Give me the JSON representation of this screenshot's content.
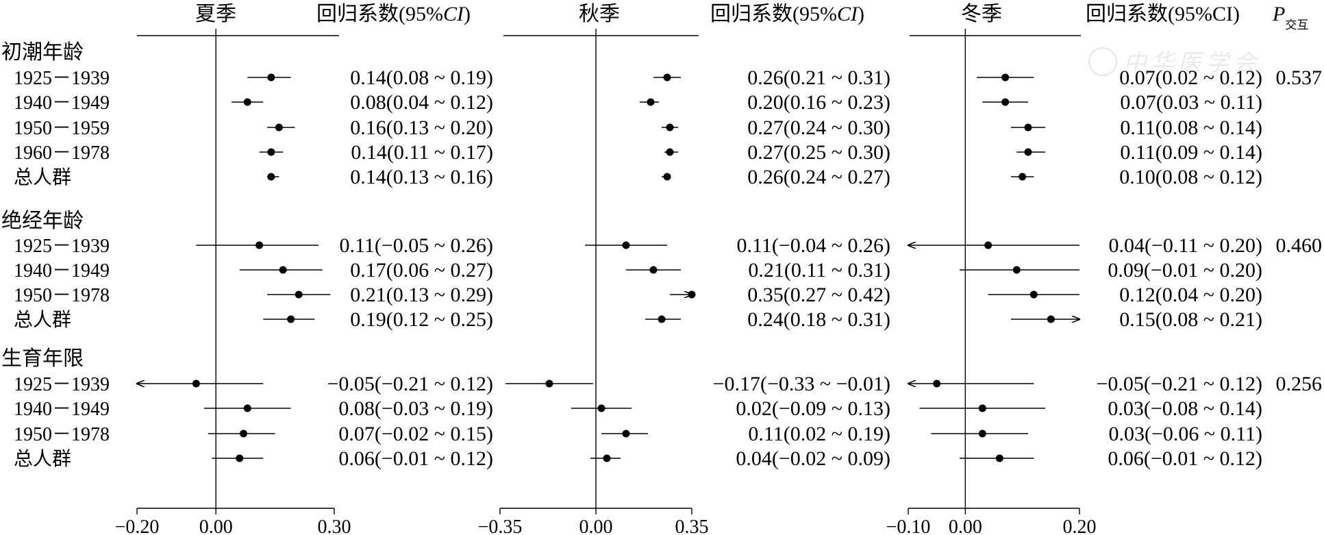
{
  "chart_data": {
    "type": "forest",
    "coef_header": "回归系数(95%CI)",
    "p_header": "P",
    "p_header_sub": "交互",
    "watermark": "中华医学会",
    "panels": [
      {
        "title": "夏季",
        "xlim": [
          -0.2,
          0.3
        ],
        "ticks": [
          "−0.20",
          "0.00",
          "0.30"
        ],
        "tick_values": [
          -0.2,
          0.0,
          0.3
        ]
      },
      {
        "title": "秋季",
        "xlim": [
          -0.35,
          0.35
        ],
        "ticks": [
          "−0.35",
          "0.00",
          "0.35"
        ],
        "tick_values": [
          -0.35,
          0.0,
          0.35
        ]
      },
      {
        "title": "冬季",
        "xlim": [
          -0.1,
          0.2
        ],
        "ticks": [
          "−0.10",
          "0.00",
          "0.20"
        ],
        "tick_values": [
          -0.1,
          0.0,
          0.2
        ]
      }
    ],
    "groups": [
      {
        "name": "初潮年龄",
        "p_interaction": "0.537",
        "rows": [
          {
            "label": "1925－1939",
            "est": [
              [
                0.14,
                0.08,
                0.19
              ],
              [
                0.26,
                0.21,
                0.31
              ],
              [
                0.07,
                0.02,
                0.12
              ]
            ],
            "text": [
              "0.14(0.08 ~ 0.19)",
              "0.26(0.21 ~ 0.31)",
              "0.07(0.02 ~ 0.12)"
            ]
          },
          {
            "label": "1940－1949",
            "est": [
              [
                0.08,
                0.04,
                0.12
              ],
              [
                0.2,
                0.16,
                0.23
              ],
              [
                0.07,
                0.03,
                0.11
              ]
            ],
            "text": [
              "0.08(0.04 ~ 0.12)",
              "0.20(0.16 ~ 0.23)",
              "0.07(0.03 ~ 0.11)"
            ]
          },
          {
            "label": "1950－1959",
            "est": [
              [
                0.16,
                0.13,
                0.2
              ],
              [
                0.27,
                0.24,
                0.3
              ],
              [
                0.11,
                0.08,
                0.14
              ]
            ],
            "text": [
              "0.16(0.13 ~ 0.20)",
              "0.27(0.24 ~ 0.30)",
              "0.11(0.08 ~ 0.14)"
            ]
          },
          {
            "label": "1960－1978",
            "est": [
              [
                0.14,
                0.11,
                0.17
              ],
              [
                0.27,
                0.25,
                0.3
              ],
              [
                0.11,
                0.09,
                0.14
              ]
            ],
            "text": [
              "0.14(0.11 ~ 0.17)",
              "0.27(0.25 ~ 0.30)",
              "0.11(0.09 ~ 0.14)"
            ]
          },
          {
            "label": "总人群",
            "est": [
              [
                0.14,
                0.13,
                0.16
              ],
              [
                0.26,
                0.24,
                0.27
              ],
              [
                0.1,
                0.08,
                0.12
              ]
            ],
            "text": [
              "0.14(0.13 ~ 0.16)",
              "0.26(0.24 ~ 0.27)",
              "0.10(0.08 ~ 0.12)"
            ]
          }
        ]
      },
      {
        "name": "绝经年龄",
        "p_interaction": "0.460",
        "rows": [
          {
            "label": "1925－1939",
            "est": [
              [
                0.11,
                -0.05,
                0.26
              ],
              [
                0.11,
                -0.04,
                0.26
              ],
              [
                0.04,
                -0.11,
                0.2
              ]
            ],
            "text": [
              "0.11(−0.05 ~ 0.26)",
              "0.11(−0.04 ~ 0.26)",
              "0.04(−0.11 ~ 0.20)"
            ]
          },
          {
            "label": "1940－1949",
            "est": [
              [
                0.17,
                0.06,
                0.27
              ],
              [
                0.21,
                0.11,
                0.31
              ],
              [
                0.09,
                -0.01,
                0.2
              ]
            ],
            "text": [
              "0.17(0.06 ~ 0.27)",
              "0.21(0.11 ~ 0.31)",
              "0.09(−0.01 ~ 0.20)"
            ]
          },
          {
            "label": "1950－1978",
            "est": [
              [
                0.21,
                0.13,
                0.29
              ],
              [
                0.35,
                0.27,
                0.42
              ],
              [
                0.12,
                0.04,
                0.2
              ]
            ],
            "text": [
              "0.21(0.13 ~ 0.29)",
              "0.35(0.27 ~ 0.42)",
              "0.12(0.04 ~ 0.20)"
            ]
          },
          {
            "label": "总人群",
            "est": [
              [
                0.19,
                0.12,
                0.25
              ],
              [
                0.24,
                0.18,
                0.31
              ],
              [
                0.15,
                0.08,
                0.21
              ]
            ],
            "text": [
              "0.19(0.12 ~ 0.25)",
              "0.24(0.18 ~ 0.31)",
              "0.15(0.08 ~ 0.21)"
            ]
          }
        ]
      },
      {
        "name": "生育年限",
        "p_interaction": "0.256",
        "rows": [
          {
            "label": "1925－1939",
            "est": [
              [
                -0.05,
                -0.21,
                0.12
              ],
              [
                -0.17,
                -0.33,
                -0.01
              ],
              [
                -0.05,
                -0.21,
                0.12
              ]
            ],
            "text": [
              "−0.05(−0.21 ~ 0.12)",
              "−0.17(−0.33 ~ −0.01)",
              "−0.05(−0.21 ~ 0.12)"
            ]
          },
          {
            "label": "1940－1949",
            "est": [
              [
                0.08,
                -0.03,
                0.19
              ],
              [
                0.02,
                -0.09,
                0.13
              ],
              [
                0.03,
                -0.08,
                0.14
              ]
            ],
            "text": [
              "0.08(−0.03 ~ 0.19)",
              "0.02(−0.09 ~ 0.13)",
              "0.03(−0.08 ~ 0.14)"
            ]
          },
          {
            "label": "1950－1978",
            "est": [
              [
                0.07,
                -0.02,
                0.15
              ],
              [
                0.11,
                0.02,
                0.19
              ],
              [
                0.03,
                -0.06,
                0.11
              ]
            ],
            "text": [
              "0.07(−0.02 ~ 0.15)",
              "0.11(0.02 ~ 0.19)",
              "0.03(−0.06 ~ 0.11)"
            ]
          },
          {
            "label": "总人群",
            "est": [
              [
                0.06,
                -0.01,
                0.12
              ],
              [
                0.04,
                -0.02,
                0.09
              ],
              [
                0.06,
                -0.01,
                0.12
              ]
            ],
            "text": [
              "0.06(−0.01 ~ 0.12)",
              "0.04(−0.02 ~ 0.09)",
              "0.06(−0.01 ~ 0.12)"
            ]
          }
        ]
      }
    ]
  }
}
